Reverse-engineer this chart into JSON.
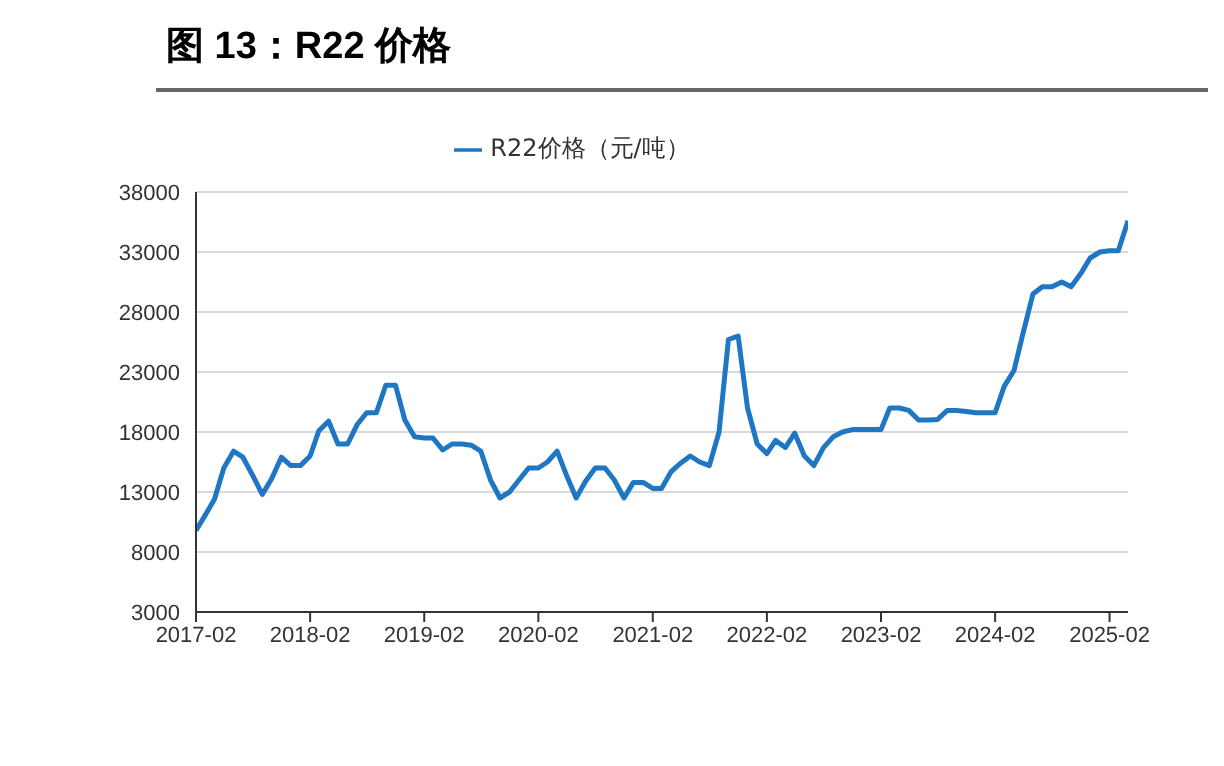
{
  "chart_data": {
    "type": "line",
    "title": "图 13：R22 价格",
    "legend": "top",
    "grid": "y",
    "marker": "none",
    "line_style": "solid",
    "ylim": [
      3000,
      38000
    ],
    "yticks": [
      3000,
      8000,
      13000,
      18000,
      23000,
      28000,
      33000,
      38000
    ],
    "xlim": [
      "2017-02",
      "2025-04"
    ],
    "xticks": [
      "2017-02",
      "2018-02",
      "2019-02",
      "2020-02",
      "2021-02",
      "2022-02",
      "2023-02",
      "2024-02",
      "2025-02"
    ],
    "x": [
      "2017-02",
      "2017-03",
      "2017-04",
      "2017-05",
      "2017-06",
      "2017-07",
      "2017-08",
      "2017-09",
      "2017-10",
      "2017-11",
      "2017-12",
      "2018-01",
      "2018-02",
      "2018-03",
      "2018-04",
      "2018-05",
      "2018-06",
      "2018-07",
      "2018-08",
      "2018-09",
      "2018-10",
      "2018-11",
      "2018-12",
      "2019-01",
      "2019-02",
      "2019-03",
      "2019-04",
      "2019-05",
      "2019-06",
      "2019-07",
      "2019-08",
      "2019-09",
      "2019-10",
      "2019-11",
      "2019-12",
      "2020-01",
      "2020-02",
      "2020-03",
      "2020-04",
      "2020-05",
      "2020-06",
      "2020-07",
      "2020-08",
      "2020-09",
      "2020-10",
      "2020-11",
      "2020-12",
      "2021-01",
      "2021-02",
      "2021-03",
      "2021-04",
      "2021-05",
      "2021-06",
      "2021-07",
      "2021-08",
      "2021-09",
      "2021-10",
      "2021-11",
      "2021-12",
      "2022-01",
      "2022-02",
      "2022-03",
      "2022-04",
      "2022-05",
      "2022-06",
      "2022-07",
      "2022-08",
      "2022-09",
      "2022-10",
      "2022-11",
      "2022-12",
      "2023-01",
      "2023-02",
      "2023-03",
      "2023-04",
      "2023-05",
      "2023-06",
      "2023-07",
      "2023-08",
      "2023-09",
      "2023-10",
      "2023-11",
      "2023-12",
      "2024-01",
      "2024-02",
      "2024-03",
      "2024-04",
      "2024-05",
      "2024-06",
      "2024-07",
      "2024-08",
      "2024-09",
      "2024-10",
      "2024-11",
      "2024-12",
      "2025-01",
      "2025-02",
      "2025-03",
      "2025-04"
    ],
    "series": [
      {
        "name": "R22价格（元/吨）",
        "color": "#1f77c4",
        "values": [
          9800,
          11000,
          12400,
          15000,
          16400,
          15900,
          14400,
          12800,
          14100,
          15900,
          15200,
          15200,
          16000,
          18100,
          18900,
          17000,
          17000,
          18600,
          19600,
          19600,
          21900,
          21900,
          19000,
          17600,
          17500,
          17500,
          16500,
          17000,
          17000,
          16900,
          16400,
          14000,
          12500,
          13000,
          14000,
          15000,
          15000,
          15500,
          16400,
          14400,
          12500,
          13900,
          15000,
          15000,
          14000,
          12500,
          13800,
          13800,
          13300,
          13300,
          14700,
          15400,
          16000,
          15500,
          15200,
          18000,
          25700,
          26000,
          20000,
          17000,
          16200,
          17300,
          16700,
          17900,
          16000,
          15200,
          16700,
          17600,
          18000,
          18200,
          18200,
          18200,
          18200,
          20000,
          20000,
          19800,
          19000,
          19000,
          19050,
          19800,
          19800,
          19700,
          19600,
          19600,
          19600,
          21800,
          23100,
          26300,
          29500,
          30100,
          30100,
          30500,
          30100,
          31200,
          32500,
          33000,
          33100,
          33100,
          35600
        ]
      }
    ]
  }
}
